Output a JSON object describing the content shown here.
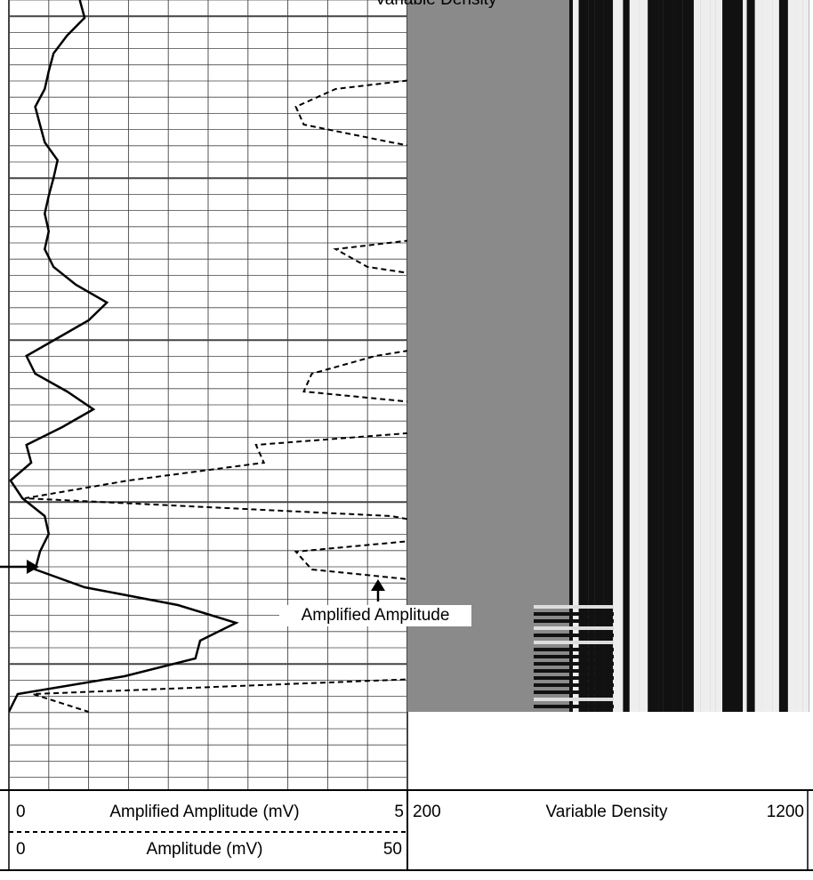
{
  "chart_data": {
    "type": "log",
    "title": "Variable Density",
    "annotation": "Amplified Amplitude",
    "categories": [
      null,
      null,
      null,
      null,
      null,
      null,
      null,
      null,
      null,
      null,
      null,
      null,
      null,
      null,
      null,
      null,
      null,
      null,
      null,
      null,
      null,
      null,
      null,
      null,
      null,
      null,
      null,
      null,
      null,
      null,
      null,
      null,
      null,
      null,
      null,
      null,
      null,
      null,
      null,
      null,
      null
    ],
    "series": [
      {
        "name": "Amplified Amplitude (mV)",
        "color": "#000000",
        "style": "solid",
        "xlim": [
          0,
          5
        ],
        "xticks": [
          0,
          5
        ],
        "values": [
          0.89,
          0.95,
          0.73,
          0.56,
          0.5,
          0.45,
          0.33,
          0.39,
          0.45,
          0.61,
          0.56,
          0.5,
          0.45,
          0.5,
          0.45,
          0.56,
          0.84,
          1.23,
          1.0,
          0.61,
          0.22,
          0.33,
          0.73,
          1.06,
          0.67,
          0.22,
          0.28,
          0.02,
          0.17,
          0.45,
          0.5,
          0.39,
          0.33,
          0.95,
          2.12,
          2.85,
          2.4,
          2.34,
          1.45,
          0.11,
          0
        ]
      },
      {
        "name": "Amplitude (mV)",
        "color": "#000000",
        "style": "dashed",
        "xlim": [
          0,
          50
        ],
        "xticks": [
          0,
          50
        ],
        "values": [
          60,
          60,
          60,
          60,
          60,
          41,
          36,
          37,
          48,
          60,
          60,
          60,
          60,
          60,
          41,
          45,
          60,
          60,
          60,
          60,
          46,
          38,
          37,
          60,
          60,
          31,
          32,
          15,
          2,
          48,
          60,
          36,
          38,
          60,
          60,
          60,
          60,
          60,
          60,
          3,
          10
        ]
      }
    ],
    "vd_scale": {
      "name": "Variable Density",
      "xlim": [
        200,
        1200
      ],
      "xticks": [
        200,
        1200
      ]
    }
  }
}
